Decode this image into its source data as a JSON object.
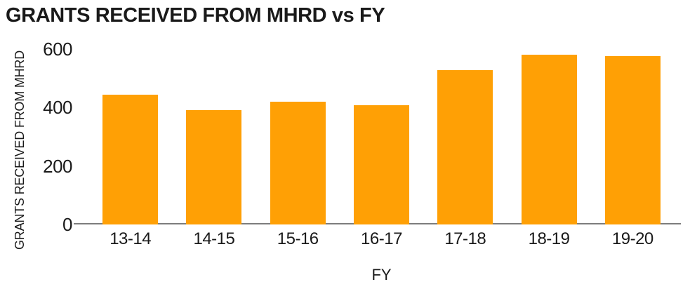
{
  "chart_data": {
    "type": "bar",
    "title": "GRANTS RECEIVED FROM MHRD vs FY",
    "categories": [
      "13-14",
      "14-15",
      "15-16",
      "16-17",
      "17-18",
      "18-19",
      "19-20"
    ],
    "values": [
      445,
      392,
      420,
      408,
      528,
      582,
      577
    ],
    "xlabel": "FY",
    "ylabel": "GRANTS RECEIVED FROM MHRD",
    "ylim": [
      0,
      600
    ],
    "yticks": [
      0,
      200,
      400,
      600
    ],
    "grid": false,
    "legend": false,
    "bar_color": "#FFA005",
    "axis_line_color": "#7D7D7D",
    "text_color": "#1A1A1A"
  }
}
